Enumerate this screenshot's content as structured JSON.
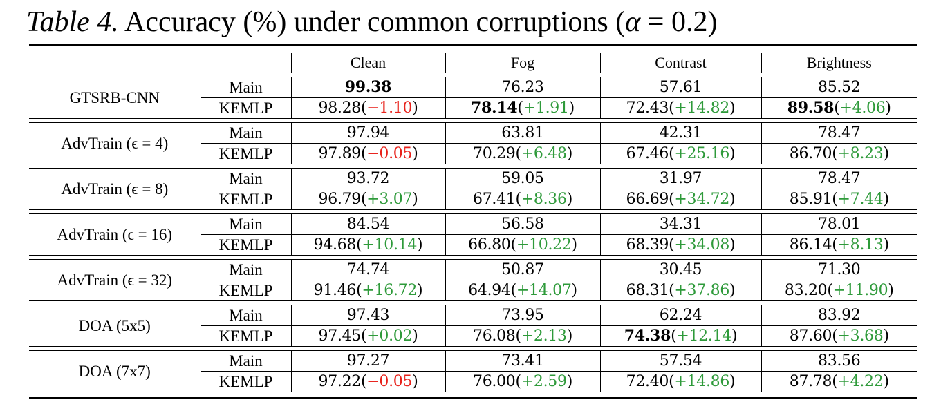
{
  "caption": {
    "label": "Table 4.",
    "text_before": " Accuracy (%) under common corruptions (",
    "alpha": "α",
    "equals": " = 0.2)"
  },
  "colors": {
    "negative_delta": "#e8221b",
    "positive_delta": "#2e9a3a"
  },
  "columns": [
    "Clean",
    "Fog",
    "Contrast",
    "Brightness"
  ],
  "groups": [
    {
      "model": "GTSRB-CNN",
      "main": {
        "label": "Main",
        "cells": [
          {
            "v": "99.38",
            "bold": true
          },
          {
            "v": "76.23"
          },
          {
            "v": "57.61"
          },
          {
            "v": "85.52"
          }
        ]
      },
      "kemlp": {
        "label": "KEMLP",
        "cells": [
          {
            "v": "98.28",
            "d": "−1.10",
            "neg": true
          },
          {
            "v": "78.14",
            "bold": true,
            "d": "+1.91"
          },
          {
            "v": "72.43",
            "d": "+14.82"
          },
          {
            "v": "89.58",
            "bold": true,
            "d": "+4.06"
          }
        ]
      }
    },
    {
      "model": "AdvTrain (ϵ = 4)",
      "main": {
        "label": "Main",
        "cells": [
          {
            "v": "97.94"
          },
          {
            "v": "63.81"
          },
          {
            "v": "42.31"
          },
          {
            "v": "78.47"
          }
        ]
      },
      "kemlp": {
        "label": "KEMLP",
        "cells": [
          {
            "v": "97.89",
            "d": "−0.05",
            "neg": true
          },
          {
            "v": "70.29",
            "d": "+6.48"
          },
          {
            "v": "67.46",
            "d": "+25.16"
          },
          {
            "v": "86.70",
            "d": "+8.23"
          }
        ]
      }
    },
    {
      "model": "AdvTrain (ϵ = 8)",
      "main": {
        "label": "Main",
        "cells": [
          {
            "v": "93.72"
          },
          {
            "v": "59.05"
          },
          {
            "v": "31.97"
          },
          {
            "v": "78.47"
          }
        ]
      },
      "kemlp": {
        "label": "KEMLP",
        "cells": [
          {
            "v": "96.79",
            "d": "+3.07"
          },
          {
            "v": "67.41",
            "d": "+8.36"
          },
          {
            "v": "66.69",
            "d": "+34.72"
          },
          {
            "v": "85.91",
            "d": "+7.44"
          }
        ]
      }
    },
    {
      "model": "AdvTrain (ϵ = 16)",
      "main": {
        "label": "Main",
        "cells": [
          {
            "v": "84.54"
          },
          {
            "v": "56.58"
          },
          {
            "v": "34.31"
          },
          {
            "v": "78.01"
          }
        ]
      },
      "kemlp": {
        "label": "KEMLP",
        "cells": [
          {
            "v": "94.68",
            "d": "+10.14"
          },
          {
            "v": "66.80",
            "d": "+10.22"
          },
          {
            "v": "68.39",
            "d": "+34.08"
          },
          {
            "v": "86.14",
            "d": "+8.13"
          }
        ]
      }
    },
    {
      "model": "AdvTrain (ϵ = 32)",
      "main": {
        "label": "Main",
        "cells": [
          {
            "v": "74.74"
          },
          {
            "v": "50.87"
          },
          {
            "v": "30.45"
          },
          {
            "v": "71.30"
          }
        ]
      },
      "kemlp": {
        "label": "KEMLP",
        "cells": [
          {
            "v": "91.46",
            "d": "+16.72"
          },
          {
            "v": "64.94",
            "d": "+14.07"
          },
          {
            "v": "68.31",
            "d": "+37.86"
          },
          {
            "v": "83.20",
            "d": "+11.90"
          }
        ]
      }
    },
    {
      "model": "DOA (5x5)",
      "main": {
        "label": "Main",
        "cells": [
          {
            "v": "97.43"
          },
          {
            "v": "73.95"
          },
          {
            "v": "62.24"
          },
          {
            "v": "83.92"
          }
        ]
      },
      "kemlp": {
        "label": "KEMLP",
        "cells": [
          {
            "v": "97.45",
            "d": "+0.02"
          },
          {
            "v": "76.08",
            "d": "+2.13"
          },
          {
            "v": "74.38",
            "bold": true,
            "d": "+12.14"
          },
          {
            "v": "87.60",
            "d": "+3.68"
          }
        ]
      }
    },
    {
      "model": "DOA (7x7)",
      "main": {
        "label": "Main",
        "cells": [
          {
            "v": "97.27"
          },
          {
            "v": "73.41"
          },
          {
            "v": "57.54"
          },
          {
            "v": "83.56"
          }
        ]
      },
      "kemlp": {
        "label": "KEMLP",
        "cells": [
          {
            "v": "97.22",
            "d": "−0.05",
            "neg": true
          },
          {
            "v": "76.00",
            "d": "+2.59"
          },
          {
            "v": "72.40",
            "d": "+14.86"
          },
          {
            "v": "87.78",
            "d": "+4.22"
          }
        ]
      }
    }
  ]
}
